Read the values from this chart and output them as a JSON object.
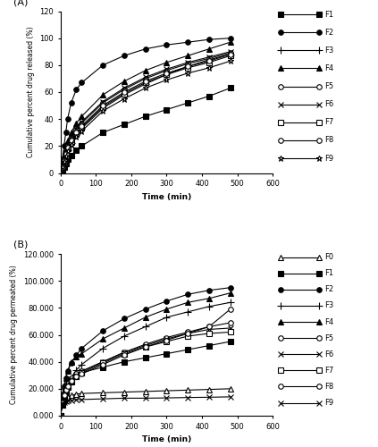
{
  "panel_A": {
    "xlabel": "Time (min)",
    "ylabel": "Cumulative percent drug released (%)",
    "xlim": [
      0,
      600
    ],
    "ylim": [
      0,
      120
    ],
    "xticks": [
      0,
      100,
      200,
      300,
      400,
      500,
      600
    ],
    "yticks": [
      0,
      20,
      40,
      60,
      80,
      100,
      120
    ],
    "series": {
      "F1": {
        "x": [
          0,
          5,
          10,
          15,
          20,
          30,
          45,
          60,
          120,
          180,
          240,
          300,
          360,
          420,
          480
        ],
        "y": [
          0,
          2,
          4,
          7,
          10,
          13,
          17,
          20,
          30,
          36,
          42,
          47,
          52,
          57,
          63
        ],
        "marker": "s",
        "filled": true
      },
      "F2": {
        "x": [
          0,
          5,
          10,
          15,
          20,
          30,
          45,
          60,
          120,
          180,
          240,
          300,
          360,
          420,
          480
        ],
        "y": [
          0,
          10,
          20,
          30,
          40,
          52,
          62,
          67,
          80,
          87,
          92,
          95,
          97,
          99,
          100
        ],
        "marker": "o",
        "filled": true
      },
      "F3": {
        "x": [
          0,
          5,
          10,
          15,
          20,
          30,
          45,
          60,
          120,
          180,
          240,
          300,
          360,
          420,
          480
        ],
        "y": [
          0,
          4,
          8,
          13,
          17,
          22,
          28,
          33,
          48,
          58,
          66,
          73,
          79,
          84,
          88
        ],
        "marker": "+",
        "filled": false
      },
      "F4": {
        "x": [
          0,
          5,
          10,
          15,
          20,
          30,
          45,
          60,
          120,
          180,
          240,
          300,
          360,
          420,
          480
        ],
        "y": [
          0,
          6,
          12,
          18,
          24,
          30,
          37,
          42,
          58,
          68,
          76,
          82,
          87,
          92,
          97
        ],
        "marker": "^",
        "filled": true
      },
      "F5": {
        "x": [
          0,
          5,
          10,
          15,
          20,
          30,
          45,
          60,
          120,
          180,
          240,
          300,
          360,
          420,
          480
        ],
        "y": [
          0,
          5,
          10,
          15,
          20,
          26,
          32,
          37,
          52,
          62,
          70,
          76,
          81,
          85,
          89
        ],
        "marker": "o",
        "filled": false
      },
      "F6": {
        "x": [
          0,
          5,
          10,
          15,
          20,
          30,
          45,
          60,
          120,
          180,
          240,
          300,
          360,
          420,
          480
        ],
        "y": [
          0,
          5,
          10,
          15,
          21,
          27,
          33,
          38,
          53,
          63,
          71,
          77,
          82,
          86,
          90
        ],
        "marker": "x",
        "filled": false
      },
      "F7": {
        "x": [
          0,
          5,
          10,
          15,
          20,
          30,
          45,
          60,
          120,
          180,
          240,
          300,
          360,
          420,
          480
        ],
        "y": [
          0,
          4,
          8,
          13,
          18,
          23,
          29,
          34,
          49,
          59,
          67,
          73,
          78,
          82,
          87
        ],
        "marker": "s",
        "filled": false
      },
      "F8": {
        "x": [
          0,
          5,
          10,
          15,
          20,
          30,
          45,
          60,
          120,
          180,
          240,
          300,
          360,
          420,
          480
        ],
        "y": [
          0,
          4,
          9,
          14,
          19,
          24,
          30,
          35,
          50,
          60,
          68,
          74,
          79,
          83,
          88
        ],
        "marker": "o",
        "filled": false
      },
      "F9": {
        "x": [
          0,
          5,
          10,
          15,
          20,
          30,
          45,
          60,
          120,
          180,
          240,
          300,
          360,
          420,
          480
        ],
        "y": [
          0,
          4,
          8,
          12,
          16,
          21,
          27,
          31,
          46,
          55,
          63,
          69,
          74,
          78,
          83
        ],
        "marker": "*",
        "filled": false
      }
    },
    "legend": [
      {
        "label": "F1",
        "marker": "s",
        "filled": true
      },
      {
        "label": "F2",
        "marker": "o",
        "filled": true
      },
      {
        "label": "F3",
        "marker": "+",
        "filled": false
      },
      {
        "label": "F4",
        "marker": "^",
        "filled": true
      },
      {
        "label": "F5",
        "marker": "o",
        "filled": false
      },
      {
        "label": "F6",
        "marker": "x",
        "filled": false
      },
      {
        "label": "F7",
        "marker": "s",
        "filled": false
      },
      {
        "label": "F8",
        "marker": "o",
        "filled": false
      },
      {
        "label": "F9",
        "marker": "*",
        "filled": false
      }
    ]
  },
  "panel_B": {
    "xlabel": "Time (min)",
    "ylabel": "Cumulative percent drug permeated (%)",
    "xlim": [
      0,
      600
    ],
    "ylim": [
      0,
      120
    ],
    "xticks": [
      0,
      100,
      200,
      300,
      400,
      500,
      600
    ],
    "yticks": [
      0,
      20,
      40,
      60,
      80,
      100,
      120
    ],
    "ytick_labels": [
      "0.000",
      "20.000",
      "40.000",
      "60.000",
      "80.000",
      "100.000",
      "120.000"
    ],
    "series": {
      "F0": {
        "x": [
          0,
          5,
          10,
          15,
          20,
          30,
          45,
          60,
          120,
          180,
          240,
          300,
          360,
          420,
          480
        ],
        "y": [
          0,
          8,
          11,
          13,
          14,
          15,
          16,
          16.5,
          17,
          17.5,
          18,
          18.5,
          19,
          19.5,
          20
        ],
        "marker": "^",
        "filled": false
      },
      "F1": {
        "x": [
          0,
          5,
          10,
          15,
          20,
          30,
          45,
          60,
          120,
          180,
          240,
          300,
          360,
          420,
          480
        ],
        "y": [
          0,
          8,
          14,
          18,
          21,
          25,
          29,
          32,
          36,
          40,
          43,
          46,
          49,
          52,
          55
        ],
        "marker": "s",
        "filled": true
      },
      "F2": {
        "x": [
          0,
          5,
          10,
          15,
          20,
          30,
          45,
          60,
          120,
          180,
          240,
          300,
          360,
          420,
          480
        ],
        "y": [
          0,
          13,
          22,
          28,
          33,
          39,
          45,
          50,
          63,
          72,
          79,
          85,
          90,
          93,
          95
        ],
        "marker": "o",
        "filled": true
      },
      "F3": {
        "x": [
          0,
          5,
          10,
          15,
          20,
          30,
          45,
          60,
          120,
          180,
          240,
          300,
          360,
          420,
          480
        ],
        "y": [
          0,
          9,
          15,
          19,
          23,
          28,
          34,
          38,
          50,
          59,
          66,
          73,
          77,
          81,
          84
        ],
        "marker": "+",
        "filled": false
      },
      "F4": {
        "x": [
          0,
          5,
          10,
          15,
          20,
          30,
          45,
          60,
          120,
          180,
          240,
          300,
          360,
          420,
          480
        ],
        "y": [
          0,
          14,
          22,
          28,
          33,
          40,
          44,
          46,
          57,
          65,
          73,
          79,
          84,
          87,
          91
        ],
        "marker": "^",
        "filled": true
      },
      "F5": {
        "x": [
          0,
          5,
          10,
          15,
          20,
          30,
          45,
          60,
          120,
          180,
          240,
          300,
          360,
          420,
          480
        ],
        "y": [
          0,
          10,
          16,
          20,
          24,
          28,
          31,
          33,
          40,
          47,
          53,
          58,
          62,
          66,
          69
        ],
        "marker": "o",
        "filled": false
      },
      "F6": {
        "x": [
          0,
          5,
          10,
          15,
          20,
          30,
          45,
          60,
          120,
          180,
          240,
          300,
          360,
          420,
          480
        ],
        "y": [
          0,
          10,
          16,
          20,
          23,
          27,
          30,
          33,
          40,
          47,
          52,
          57,
          61,
          64,
          65
        ],
        "marker": "x",
        "filled": false
      },
      "F7": {
        "x": [
          0,
          5,
          10,
          15,
          20,
          30,
          45,
          60,
          120,
          180,
          240,
          300,
          360,
          420,
          480
        ],
        "y": [
          0,
          10,
          15,
          19,
          22,
          26,
          29,
          32,
          39,
          46,
          51,
          55,
          59,
          61,
          62
        ],
        "marker": "s",
        "filled": false
      },
      "F8": {
        "x": [
          0,
          5,
          10,
          15,
          20,
          30,
          45,
          60,
          120,
          180,
          240,
          300,
          360,
          420,
          480
        ],
        "y": [
          0,
          10,
          15,
          19,
          22,
          26,
          29,
          31,
          38,
          45,
          51,
          56,
          61,
          66,
          79
        ],
        "marker": "o",
        "filled": false
      },
      "F9": {
        "x": [
          0,
          5,
          10,
          15,
          20,
          30,
          45,
          60,
          120,
          180,
          240,
          300,
          360,
          420,
          480
        ],
        "y": [
          0,
          9,
          10,
          10.5,
          11,
          11.5,
          12,
          12,
          12.5,
          13,
          13,
          13.2,
          13.5,
          13.7,
          14
        ],
        "marker": "x",
        "filled": false
      }
    },
    "legend": [
      {
        "label": "F0",
        "marker": "^",
        "filled": false
      },
      {
        "label": "F1",
        "marker": "s",
        "filled": true
      },
      {
        "label": "F2",
        "marker": "o",
        "filled": true
      },
      {
        "label": "F3",
        "marker": "+",
        "filled": false
      },
      {
        "label": "F4",
        "marker": "^",
        "filled": true
      },
      {
        "label": "F5",
        "marker": "o",
        "filled": false
      },
      {
        "label": "F6",
        "marker": "x",
        "filled": false
      },
      {
        "label": "F7",
        "marker": "s",
        "filled": false
      },
      {
        "label": "F8",
        "marker": "o",
        "filled": false
      },
      {
        "label": "F9",
        "marker": "x",
        "filled": false
      }
    ]
  }
}
